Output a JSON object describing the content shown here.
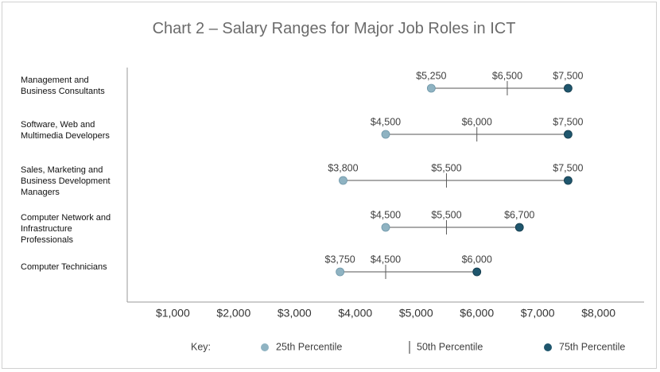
{
  "chart_data": {
    "type": "range",
    "title": "Chart 2 – Salary Ranges for Major Job Roles in ICT",
    "categories": [
      "Management and Business Consultants",
      "Software, Web and Multimedia Developers",
      "Sales, Marketing and Business Development Managers",
      "Computer Network and Infrastructure Professionals",
      "Computer Technicians"
    ],
    "series": [
      {
        "name": "25th Percentile",
        "color": "#8fb3c2",
        "values": [
          5250,
          4500,
          3800,
          4500,
          3750
        ],
        "value_labels": [
          "$5,250",
          "$4,500",
          "$3,800",
          "$4,500",
          "$3,750"
        ]
      },
      {
        "name": "50th Percentile",
        "color": "#595959",
        "values": [
          6500,
          6000,
          5500,
          5500,
          4500
        ],
        "value_labels": [
          "$6,500",
          "$6,000",
          "$5,500",
          "$5,500",
          "$4,500"
        ]
      },
      {
        "name": "75th Percentile",
        "color": "#1f566d",
        "values": [
          7500,
          7500,
          7500,
          6700,
          6000
        ],
        "value_labels": [
          "$7,500",
          "$7,500",
          "$7,500",
          "$6,700",
          "$6,000"
        ]
      }
    ],
    "xlim": [
      250,
      8750
    ],
    "xticks": [
      {
        "value": 1000,
        "label": "$1,000"
      },
      {
        "value": 2000,
        "label": "$2,000"
      },
      {
        "value": 3000,
        "label": "$3,000"
      },
      {
        "value": 4000,
        "label": "$4,000"
      },
      {
        "value": 5000,
        "label": "$5,000"
      },
      {
        "value": 6000,
        "label": "$6,000"
      },
      {
        "value": 7000,
        "label": "$7,000"
      },
      {
        "value": 8000,
        "label": "$8,000"
      }
    ],
    "legend_title": "Key:"
  }
}
